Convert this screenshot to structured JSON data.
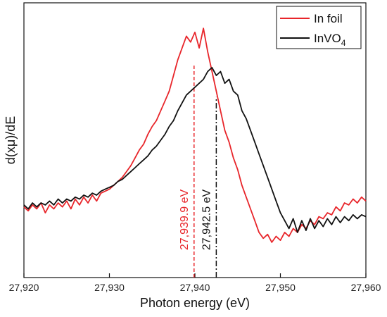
{
  "chart_data": {
    "type": "line",
    "title": "",
    "xlabel": "Photon energy (eV)",
    "ylabel": "d(xμ)/dE",
    "xlim": [
      27920,
      27960
    ],
    "ylim": [
      -0.35,
      1.05
    ],
    "xticks": [
      27920,
      27930,
      27940,
      27950,
      27960
    ],
    "xtick_labels": [
      "27,920",
      "27,930",
      "27,940",
      "27,950",
      "27,960"
    ],
    "y_tick_labels_shown": false,
    "grid": false,
    "legend_position": "top-right",
    "series": [
      {
        "name": "In foil",
        "name_base": "In foil",
        "name_sub": "",
        "color": "#e8252a",
        "x": [
          27920,
          27920.5,
          27921,
          27921.5,
          27922,
          27922.5,
          27923,
          27923.5,
          27924,
          27924.5,
          27925,
          27925.5,
          27926,
          27926.5,
          27927,
          27927.5,
          27928,
          27928.5,
          27929,
          27929.5,
          27930,
          27930.5,
          27931,
          27931.5,
          27932,
          27932.5,
          27933,
          27933.5,
          27934,
          27934.5,
          27935,
          27935.5,
          27936,
          27936.5,
          27937,
          27937.5,
          27938,
          27938.5,
          27939,
          27939.5,
          27940,
          27940.5,
          27941,
          27941.5,
          27942,
          27942.5,
          27943,
          27943.5,
          27944,
          27944.5,
          27945,
          27945.5,
          27946,
          27946.5,
          27947,
          27947.5,
          27948,
          27948.5,
          27949,
          27949.5,
          27950,
          27950.5,
          27951,
          27951.5,
          27952,
          27952.5,
          27953,
          27953.5,
          27954,
          27954.5,
          27955,
          27955.5,
          27956,
          27956.5,
          27957,
          27957.5,
          27958,
          27958.5,
          27959,
          27959.5,
          27960
        ],
        "y": [
          0.01,
          -0.01,
          0.02,
          0.0,
          0.03,
          -0.02,
          0.02,
          0.0,
          0.03,
          0.01,
          0.04,
          0.0,
          0.05,
          0.02,
          0.06,
          0.03,
          0.07,
          0.04,
          0.08,
          0.09,
          0.1,
          0.12,
          0.14,
          0.16,
          0.19,
          0.22,
          0.26,
          0.3,
          0.33,
          0.38,
          0.42,
          0.45,
          0.5,
          0.55,
          0.6,
          0.68,
          0.76,
          0.82,
          0.88,
          0.85,
          0.9,
          0.82,
          0.92,
          0.8,
          0.7,
          0.6,
          0.5,
          0.4,
          0.34,
          0.26,
          0.2,
          0.12,
          0.06,
          0.0,
          -0.06,
          -0.12,
          -0.15,
          -0.13,
          -0.17,
          -0.14,
          -0.16,
          -0.12,
          -0.14,
          -0.1,
          -0.12,
          -0.08,
          -0.1,
          -0.06,
          -0.08,
          -0.04,
          -0.05,
          -0.02,
          -0.03,
          0.01,
          -0.01,
          0.03,
          0.02,
          0.05,
          0.03,
          0.06,
          0.04
        ]
      },
      {
        "name": "InVO4",
        "name_base": "InVO",
        "name_sub": "4",
        "color": "#111111",
        "x": [
          27920,
          27920.5,
          27921,
          27921.5,
          27922,
          27922.5,
          27923,
          27923.5,
          27924,
          27924.5,
          27925,
          27925.5,
          27926,
          27926.5,
          27927,
          27927.5,
          27928,
          27928.5,
          27929,
          27929.5,
          27930,
          27930.5,
          27931,
          27931.5,
          27932,
          27932.5,
          27933,
          27933.5,
          27934,
          27934.5,
          27935,
          27935.5,
          27936,
          27936.5,
          27937,
          27937.5,
          27938,
          27938.5,
          27939,
          27939.5,
          27940,
          27940.5,
          27941,
          27941.5,
          27942,
          27942.5,
          27943,
          27943.5,
          27944,
          27944.5,
          27945,
          27945.5,
          27946,
          27946.5,
          27947,
          27947.5,
          27948,
          27948.5,
          27949,
          27949.5,
          27950,
          27950.5,
          27951,
          27951.5,
          27952,
          27952.5,
          27953,
          27953.5,
          27954,
          27954.5,
          27955,
          27955.5,
          27956,
          27956.5,
          27957,
          27957.5,
          27958,
          27958.5,
          27959,
          27959.5,
          27960
        ],
        "y": [
          0.02,
          0.0,
          0.03,
          0.01,
          0.03,
          0.02,
          0.04,
          0.02,
          0.05,
          0.03,
          0.05,
          0.04,
          0.06,
          0.05,
          0.07,
          0.06,
          0.08,
          0.07,
          0.09,
          0.1,
          0.11,
          0.12,
          0.14,
          0.15,
          0.17,
          0.19,
          0.21,
          0.23,
          0.25,
          0.27,
          0.3,
          0.32,
          0.35,
          0.38,
          0.42,
          0.45,
          0.5,
          0.54,
          0.58,
          0.6,
          0.62,
          0.64,
          0.66,
          0.7,
          0.72,
          0.68,
          0.7,
          0.64,
          0.66,
          0.6,
          0.58,
          0.5,
          0.46,
          0.4,
          0.34,
          0.28,
          0.22,
          0.16,
          0.1,
          0.04,
          -0.02,
          -0.06,
          -0.1,
          -0.05,
          -0.12,
          -0.06,
          -0.11,
          -0.05,
          -0.1,
          -0.06,
          -0.09,
          -0.05,
          -0.08,
          -0.04,
          -0.07,
          -0.04,
          -0.06,
          -0.03,
          -0.05,
          -0.03,
          -0.04
        ]
      }
    ],
    "annotations": [
      {
        "text": "27,939.9 eV",
        "x": 27939.9,
        "color": "#e8252a",
        "line_style": "dashed",
        "y_top": 0.73
      },
      {
        "text": "27,942.5 eV",
        "x": 27942.5,
        "color": "#111111",
        "line_style": "dash-dot",
        "y_top": 0.57
      }
    ]
  }
}
